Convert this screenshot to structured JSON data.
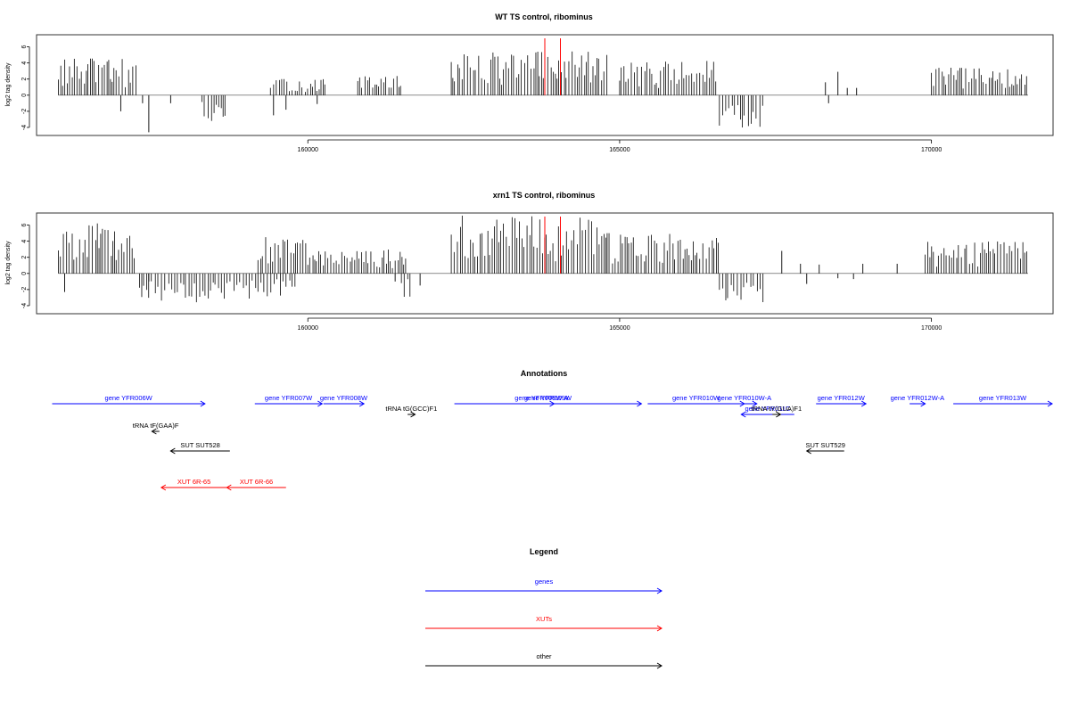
{
  "panels": [
    {
      "id": "wt",
      "title": "WT TS control, ribominus",
      "ylabel": "log2 tag density",
      "yticks": [
        -4,
        -2,
        0,
        2,
        4,
        6
      ],
      "ylim": [
        -5,
        7.5
      ],
      "xlim": [
        155650,
        171950
      ],
      "xticks": [
        160000,
        165000,
        170000
      ],
      "xtick_labels": [
        "160000",
        "165000",
        "170000"
      ],
      "red_markers": [
        163800,
        164050
      ],
      "plus_regions": [
        {
          "start": 156000,
          "end": 157250,
          "max": 4.6
        },
        {
          "start": 159400,
          "end": 160300,
          "max": 2.0
        },
        {
          "start": 160800,
          "end": 161500,
          "max": 2.4
        },
        {
          "start": 162300,
          "end": 164800,
          "max": 5.5
        },
        {
          "start": 165000,
          "end": 166550,
          "max": 4.3
        },
        {
          "start": 170000,
          "end": 171550,
          "max": 3.5
        }
      ],
      "minus_regions": [
        {
          "start": 158300,
          "end": 158700,
          "min": -3.2
        },
        {
          "start": 166600,
          "end": 167300,
          "min": -4.4
        }
      ],
      "sparse_bars": [
        [
          157350,
          -1.0
        ],
        [
          157450,
          -4.6
        ],
        [
          157800,
          -1.0
        ],
        [
          159450,
          -2.5
        ],
        [
          159650,
          -1.8
        ],
        [
          160150,
          -1.1
        ],
        [
          168300,
          1.6
        ],
        [
          168350,
          -1.0
        ],
        [
          168500,
          2.9
        ],
        [
          168650,
          0.9
        ],
        [
          168800,
          0.9
        ],
        [
          157000,
          -2.0
        ]
      ]
    },
    {
      "id": "xrn1",
      "title": "xrn1 TS control, ribominus",
      "ylabel": "log2 tag density",
      "yticks": [
        -4,
        -2,
        0,
        2,
        4,
        6
      ],
      "ylim": [
        -5,
        7.5
      ],
      "xlim": [
        155650,
        171950
      ],
      "xticks": [
        160000,
        165000,
        170000
      ],
      "xtick_labels": [
        "160000",
        "165000",
        "170000"
      ],
      "red_markers": [
        163800,
        164050
      ],
      "plus_regions": [
        {
          "start": 156000,
          "end": 157250,
          "max": 6.3
        },
        {
          "start": 159200,
          "end": 160000,
          "max": 4.5
        },
        {
          "start": 160000,
          "end": 161600,
          "max": 3.2
        },
        {
          "start": 162300,
          "end": 164800,
          "max": 7.2
        },
        {
          "start": 164800,
          "end": 166600,
          "max": 5.0
        },
        {
          "start": 169900,
          "end": 171550,
          "max": 4.2
        }
      ],
      "minus_regions": [
        {
          "start": 157300,
          "end": 159600,
          "min": -3.6
        },
        {
          "start": 159600,
          "end": 159800,
          "min": -2.0
        },
        {
          "start": 161500,
          "end": 161700,
          "min": -3.4
        },
        {
          "start": 166600,
          "end": 167300,
          "min": -3.6
        }
      ],
      "sparse_bars": [
        [
          156100,
          -2.3
        ],
        [
          157450,
          -1.0
        ],
        [
          161400,
          -1.0
        ],
        [
          161800,
          -1.5
        ],
        [
          167600,
          2.8
        ],
        [
          167900,
          1.2
        ],
        [
          168200,
          1.1
        ],
        [
          168000,
          -1.3
        ],
        [
          168500,
          -0.6
        ],
        [
          168750,
          -0.7
        ],
        [
          168900,
          1.2
        ],
        [
          169450,
          1.2
        ]
      ]
    }
  ],
  "annotations_title": "Annotations",
  "annotations_xlim": [
    155650,
    171950
  ],
  "features": [
    {
      "label": "gene YFR006W",
      "type": "gene",
      "start": 155900,
      "end": 158350,
      "strand": "+",
      "row": 0
    },
    {
      "label": "gene YFR007W",
      "type": "gene",
      "start": 159150,
      "end": 160230,
      "strand": "+",
      "row": 0
    },
    {
      "label": "gene YFR008W",
      "type": "gene",
      "start": 160250,
      "end": 160900,
      "strand": "+",
      "row": 0
    },
    {
      "label": "gene YFR009W",
      "type": "gene",
      "start": 162350,
      "end": 165350,
      "strand": "+",
      "row": 0
    },
    {
      "label": "gene YFR009W-A",
      "type": "gene",
      "start": 163550,
      "end": 163950,
      "strand": "+",
      "row": 0
    },
    {
      "label": "gene YFR010W",
      "type": "gene",
      "start": 165450,
      "end": 167000,
      "strand": "+",
      "row": 0
    },
    {
      "label": "gene YFR010W-A",
      "type": "gene",
      "start": 166800,
      "end": 167200,
      "strand": "+",
      "row": 0
    },
    {
      "label": "gene YFR011C",
      "type": "gene",
      "start": 166950,
      "end": 167800,
      "strand": "-",
      "row": 1
    },
    {
      "label": "gene YFR012W",
      "type": "gene",
      "start": 168150,
      "end": 168950,
      "strand": "+",
      "row": 0
    },
    {
      "label": "gene YFR012W-A",
      "type": "gene",
      "start": 169650,
      "end": 169900,
      "strand": "+",
      "row": 0
    },
    {
      "label": "gene YFR013W",
      "type": "gene",
      "start": 170350,
      "end": 172350,
      "strand": "+",
      "row": 0
    },
    {
      "label": "tRNA tF(GAA)F",
      "type": "other",
      "start": 157500,
      "end": 157620,
      "strand": "-",
      "row": 2
    },
    {
      "label": "tRNA tG(GCC)F1",
      "type": "other",
      "start": 161600,
      "end": 161720,
      "strand": "+",
      "row": 1
    },
    {
      "label": "tRNA tY(GUA)F1",
      "type": "other",
      "start": 167450,
      "end": 167580,
      "strand": "+",
      "row": 1
    },
    {
      "label": "SUT SUT528",
      "type": "other",
      "start": 157800,
      "end": 158750,
      "strand": "-",
      "row": 3
    },
    {
      "label": "SUT SUT529",
      "type": "other",
      "start": 168000,
      "end": 168600,
      "strand": "-",
      "row": 3
    },
    {
      "label": "XUT 6R-65",
      "type": "xut",
      "start": 157650,
      "end": 158700,
      "strand": "-",
      "row": 5
    },
    {
      "label": "XUT 6R-66",
      "type": "xut",
      "start": 158700,
      "end": 159650,
      "strand": "-",
      "row": 5
    }
  ],
  "legend": {
    "title": "Legend",
    "items": [
      {
        "label": "genes",
        "type": "gene"
      },
      {
        "label": "XUTs",
        "type": "xut"
      },
      {
        "label": "other",
        "type": "other"
      }
    ]
  },
  "colors": {
    "gene": "#0000ff",
    "xut": "#ff0000",
    "other": "#000000",
    "marker": "#ff0000",
    "bar": "#000000",
    "axis": "#000000",
    "box": "#333333"
  }
}
